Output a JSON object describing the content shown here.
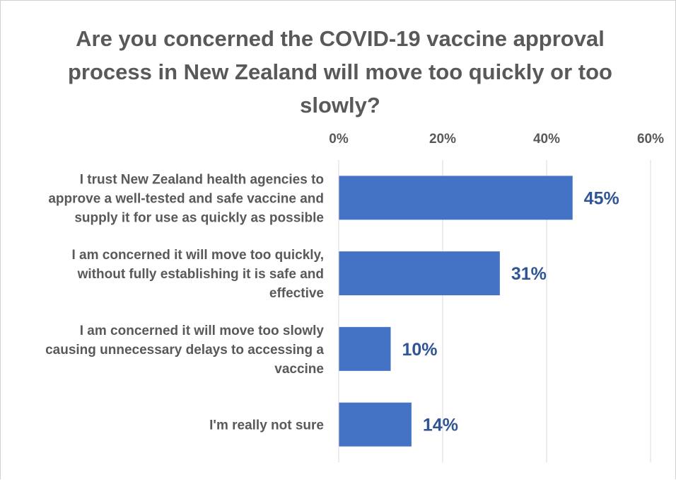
{
  "chart_data": {
    "type": "bar",
    "orientation": "horizontal",
    "title": "Are you concerned the COVID-19 vaccine approval process in New Zealand will move too quickly or too slowly?",
    "categories": [
      "I trust New Zealand health agencies to approve a well-tested and safe vaccine and supply it for use as quickly as possible",
      "I am concerned it will move too quickly, without fully establishing it is safe and effective",
      "I am concerned it will move too slowly causing unnecessary delays to accessing a vaccine",
      "I'm really not sure"
    ],
    "category_lines": [
      [
        "I trust New Zealand health agencies to",
        "approve a well-tested and safe vaccine and",
        "supply it for use as quickly as possible"
      ],
      [
        "I am concerned it will move too quickly,",
        "without fully establishing it is safe and",
        "effective"
      ],
      [
        "I am concerned it will move too slowly",
        "causing unnecessary delays to accessing a",
        "vaccine"
      ],
      [
        "I'm really not sure"
      ]
    ],
    "values": [
      45,
      31,
      10,
      14
    ],
    "data_labels": [
      "45%",
      "31%",
      "10%",
      "14%"
    ],
    "xlim": [
      0,
      60
    ],
    "x_ticks": [
      0,
      20,
      40,
      60
    ],
    "x_tick_labels": [
      "0%",
      "20%",
      "40%",
      "60%"
    ],
    "axis_position": "top",
    "grid": true,
    "legend": "none",
    "colors": {
      "bar": "#4472c4",
      "data_label": "#2f5597",
      "text": "#595959",
      "grid": "#d9d9d9"
    }
  }
}
